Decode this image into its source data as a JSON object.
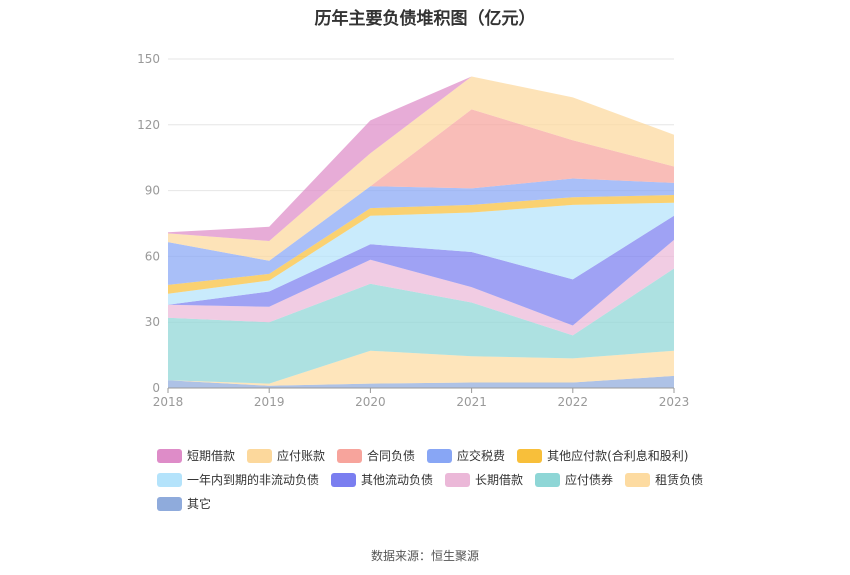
{
  "title": "历年主要负债堆积图（亿元）",
  "source": "数据来源：恒生聚源",
  "chart_data": {
    "type": "area",
    "stacked": true,
    "x": [
      "2018",
      "2019",
      "2020",
      "2021",
      "2022",
      "2023"
    ],
    "ylim": [
      0,
      150
    ],
    "yticks": [
      0,
      30,
      60,
      90,
      120,
      150
    ],
    "grid": true,
    "legend_position": "bottom",
    "series": [
      {
        "name": "其它",
        "color": "#8fabdc",
        "values": [
          3.5,
          1.0,
          2.0,
          2.5,
          2.5,
          5.5
        ]
      },
      {
        "name": "租赁负债",
        "color": "#fddba1",
        "values": [
          0.0,
          1.0,
          15.0,
          12.0,
          11.0,
          11.5
        ]
      },
      {
        "name": "应付债券",
        "color": "#8ed6d6",
        "values": [
          28.5,
          28.0,
          30.5,
          24.5,
          10.5,
          37.5
        ]
      },
      {
        "name": "长期借款",
        "color": "#ebb8d8",
        "values": [
          6.0,
          7.0,
          11.0,
          7.0,
          4.5,
          13.0
        ]
      },
      {
        "name": "其他流动负债",
        "color": "#7a7ef0",
        "values": [
          0.0,
          7.0,
          7.0,
          16.0,
          21.0,
          11.0
        ]
      },
      {
        "name": "一年内到期的非流动负债",
        "color": "#b4e3fb",
        "values": [
          5.0,
          5.0,
          13.0,
          18.0,
          34.0,
          6.0
        ]
      },
      {
        "name": "其他应付款(合利息和股利)",
        "color": "#f8bf3a",
        "values": [
          4.0,
          3.0,
          3.5,
          3.5,
          3.5,
          3.5
        ]
      },
      {
        "name": "应交税费",
        "color": "#88a6f5",
        "values": [
          19.5,
          6.0,
          10.0,
          7.5,
          8.5,
          5.5
        ]
      },
      {
        "name": "合同负债",
        "color": "#f7a49c",
        "values": [
          0.0,
          0.0,
          0.0,
          36.0,
          17.5,
          7.5
        ]
      },
      {
        "name": "应付账款",
        "color": "#fcd89c",
        "values": [
          4.0,
          9.0,
          15.0,
          15.0,
          19.5,
          14.5
        ]
      },
      {
        "name": "短期借款",
        "color": "#de8cc8",
        "values": [
          0.5,
          6.5,
          15.0,
          0.0,
          0.0,
          0.0
        ]
      }
    ],
    "legend_order": [
      "短期借款",
      "应付账款",
      "合同负债",
      "应交税费",
      "其他应付款(合利息和股利)",
      "一年内到期的非流动负债",
      "其他流动负债",
      "长期借款",
      "应付债券",
      "租赁负债",
      "其它"
    ]
  }
}
